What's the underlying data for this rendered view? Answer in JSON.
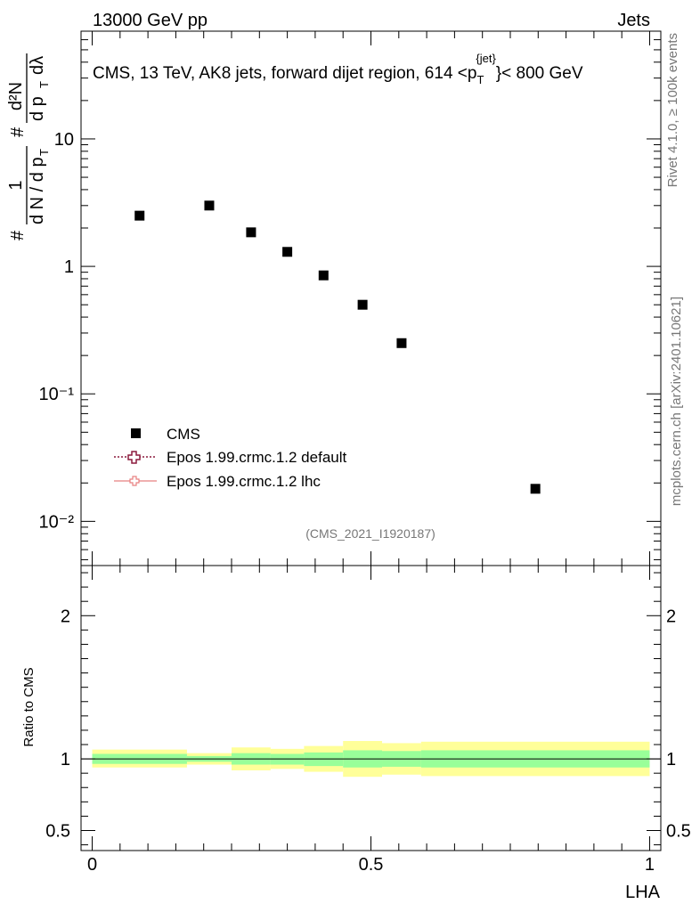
{
  "header": {
    "left": "13000 GeV pp",
    "right": "Jets"
  },
  "side": {
    "rivet": "Rivet 4.1.0, ≥ 100k events",
    "mcplots": "mcplots.cern.ch [arXiv:2401.10621]"
  },
  "colors": {
    "data": "#000000",
    "epos_default": "#8b1a3d",
    "epos_lhc": "#e88080",
    "band_inner": "#99ff99",
    "band_outer": "#ffff99"
  },
  "chart_data": [
    {
      "type": "scatter",
      "title": "CMS, 13 TeV, AK8 jets, forward dijet region, 614 <p_T^{jet}< 800 GeV",
      "title_parts": {
        "main": "CMS, 13 TeV, AK8 jets, forward dijet region, 614 <p",
        "sub": "T",
        "sup": "{jet}",
        "tail": "}< 800 GeV"
      },
      "ylabel": "1/dN/dp_T # d²N/dp_T dλ",
      "ylabel_parts": {
        "hash": "#",
        "one": "1",
        "dN": "d N / d p",
        "T": "T",
        "hash2": "#",
        "num": "d²N",
        "den": "d p",
        "lambda": "dλ"
      },
      "yscale": "log",
      "ylim": [
        0.0045,
        70
      ],
      "xlim": [
        -0.02,
        1.02
      ],
      "y_ticks": [
        {
          "value": 10,
          "label": "10"
        },
        {
          "value": 1,
          "label": "1"
        },
        {
          "value": 0.1,
          "label": "10⁻¹"
        },
        {
          "value": 0.01,
          "label": "10⁻²"
        }
      ],
      "watermark": "(CMS_2021_I1920187)",
      "series": [
        {
          "name": "CMS",
          "x": [
            0.085,
            0.21,
            0.285,
            0.35,
            0.415,
            0.485,
            0.555,
            0.795
          ],
          "y": [
            2.5,
            3.0,
            1.85,
            1.3,
            0.85,
            0.5,
            0.25,
            0.018
          ]
        }
      ],
      "legend": [
        {
          "label": "CMS",
          "marker": "square"
        },
        {
          "label": "Epos 1.99.crmc.1.2 default",
          "marker": "open-cross",
          "line": "dotted"
        },
        {
          "label": "Epos 1.99.crmc.1.2 lhc",
          "marker": "open-cross",
          "line": "solid"
        }
      ],
      "legend_position": "lower-left"
    },
    {
      "type": "area",
      "ylabel": "Ratio to CMS",
      "xlabel": "LHA",
      "ylim": [
        0.36,
        2.35
      ],
      "xlim": [
        -0.02,
        1.02
      ],
      "y_ticks": [
        {
          "value": 2,
          "label": "2"
        },
        {
          "value": 1,
          "label": "1"
        },
        {
          "value": 0.5,
          "label": "0.5"
        }
      ],
      "x_ticks": [
        {
          "value": 0,
          "label": "0"
        },
        {
          "value": 0.5,
          "label": "0.5"
        },
        {
          "value": 1,
          "label": "1"
        }
      ],
      "bands": [
        {
          "x0": 0.0,
          "x1": 0.17,
          "inner": [
            0.965,
            1.035
          ],
          "outer": [
            0.94,
            1.065
          ]
        },
        {
          "x0": 0.17,
          "x1": 0.25,
          "inner": [
            0.98,
            1.02
          ],
          "outer": [
            0.96,
            1.04
          ]
        },
        {
          "x0": 0.25,
          "x1": 0.32,
          "inner": [
            0.96,
            1.04
          ],
          "outer": [
            0.92,
            1.08
          ]
        },
        {
          "x0": 0.32,
          "x1": 0.38,
          "inner": [
            0.96,
            1.035
          ],
          "outer": [
            0.93,
            1.07
          ]
        },
        {
          "x0": 0.38,
          "x1": 0.45,
          "inner": [
            0.95,
            1.045
          ],
          "outer": [
            0.91,
            1.09
          ]
        },
        {
          "x0": 0.45,
          "x1": 0.52,
          "inner": [
            0.94,
            1.06
          ],
          "outer": [
            0.875,
            1.125
          ]
        },
        {
          "x0": 0.52,
          "x1": 0.59,
          "inner": [
            0.945,
            1.055
          ],
          "outer": [
            0.89,
            1.11
          ]
        },
        {
          "x0": 0.59,
          "x1": 1.0,
          "inner": [
            0.94,
            1.06
          ],
          "outer": [
            0.88,
            1.12
          ]
        }
      ],
      "reference_line": 1.0
    }
  ]
}
